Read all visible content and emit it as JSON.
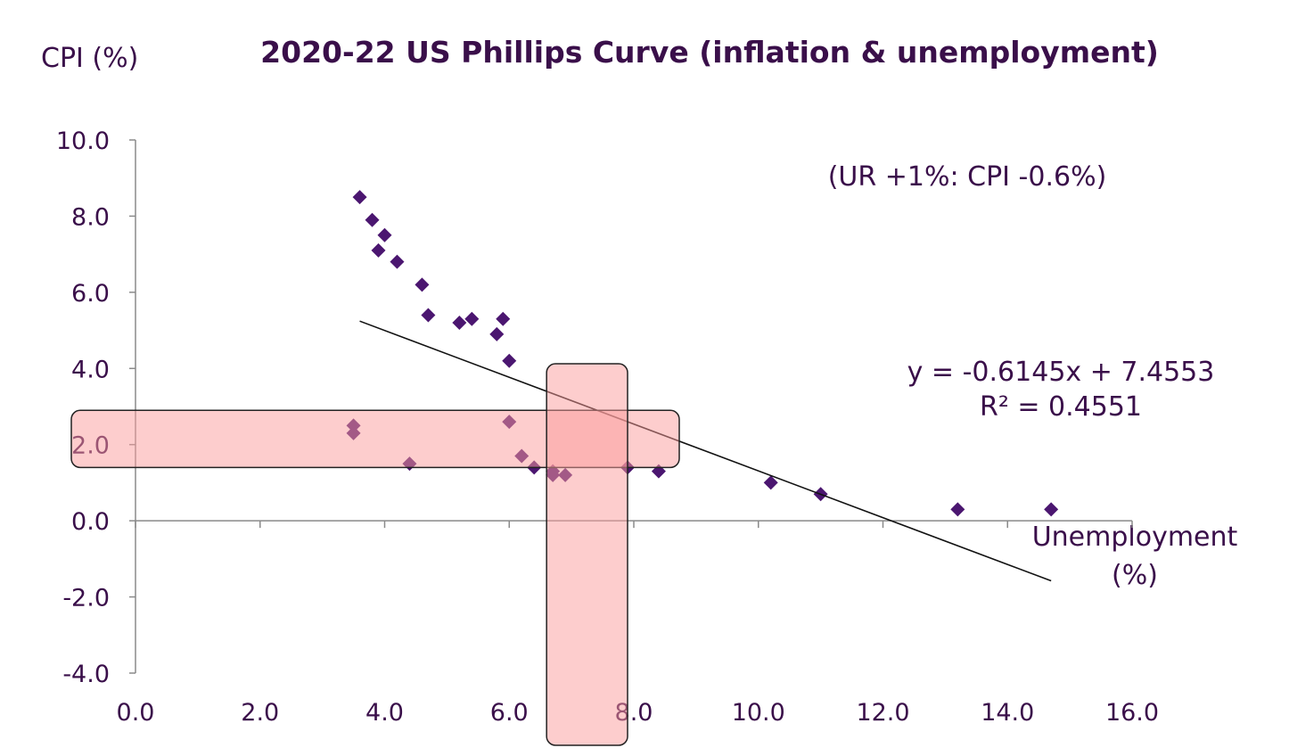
{
  "chart_data": {
    "type": "scatter",
    "title": "2020-22 US Phillips Curve (inflation & unemployment)",
    "ylabel": "CPI (%)",
    "xlabel_lines": [
      "Unemployment",
      "(%)"
    ],
    "xlim": [
      0,
      16
    ],
    "ylim": [
      -4,
      10
    ],
    "x_ticks": [
      "0.0",
      "2.0",
      "4.0",
      "6.0",
      "8.0",
      "10.0",
      "12.0",
      "14.0",
      "16.0"
    ],
    "y_ticks": [
      "10.0",
      "8.0",
      "6.0",
      "4.0",
      "2.0",
      "0.0",
      "-2.0",
      "-4.0"
    ],
    "grid": false,
    "annotation": "(UR +1%: CPI -0.6%)",
    "trendline": {
      "equation": "y = -0.6145x + 7.4553",
      "r_squared": "R² = 0.4551",
      "slope": -0.6145,
      "intercept": 7.4553,
      "x_range": [
        3.6,
        14.7
      ]
    },
    "highlight_bands": [
      {
        "orientation": "horizontal",
        "y_range": [
          1.4,
          2.9
        ]
      },
      {
        "orientation": "vertical",
        "x_range": [
          6.6,
          7.9
        ]
      }
    ],
    "points": [
      {
        "x": 3.5,
        "y": 2.3
      },
      {
        "x": 3.5,
        "y": 2.5
      },
      {
        "x": 3.6,
        "y": 8.5
      },
      {
        "x": 3.8,
        "y": 7.9
      },
      {
        "x": 3.9,
        "y": 7.1
      },
      {
        "x": 4.0,
        "y": 7.5
      },
      {
        "x": 4.2,
        "y": 6.8
      },
      {
        "x": 4.4,
        "y": 1.5
      },
      {
        "x": 4.6,
        "y": 6.2
      },
      {
        "x": 4.7,
        "y": 5.4
      },
      {
        "x": 5.2,
        "y": 5.2
      },
      {
        "x": 5.4,
        "y": 5.3
      },
      {
        "x": 5.8,
        "y": 4.9
      },
      {
        "x": 5.9,
        "y": 5.3
      },
      {
        "x": 6.0,
        "y": 4.2
      },
      {
        "x": 6.0,
        "y": 2.6
      },
      {
        "x": 6.2,
        "y": 1.7
      },
      {
        "x": 6.4,
        "y": 1.4
      },
      {
        "x": 6.7,
        "y": 1.2
      },
      {
        "x": 6.7,
        "y": 1.3
      },
      {
        "x": 6.9,
        "y": 1.2
      },
      {
        "x": 7.9,
        "y": 1.4
      },
      {
        "x": 8.4,
        "y": 1.3
      },
      {
        "x": 10.2,
        "y": 1.0
      },
      {
        "x": 11.0,
        "y": 0.7
      },
      {
        "x": 13.2,
        "y": 0.3
      },
      {
        "x": 14.7,
        "y": 0.3
      }
    ],
    "colors": {
      "marker": "#4b1670",
      "text": "#3a0f4a",
      "band_fill": "#fc9c9c",
      "band_stroke": "#222222",
      "trendline": "#111111",
      "axis": "#8a8a8a"
    }
  }
}
